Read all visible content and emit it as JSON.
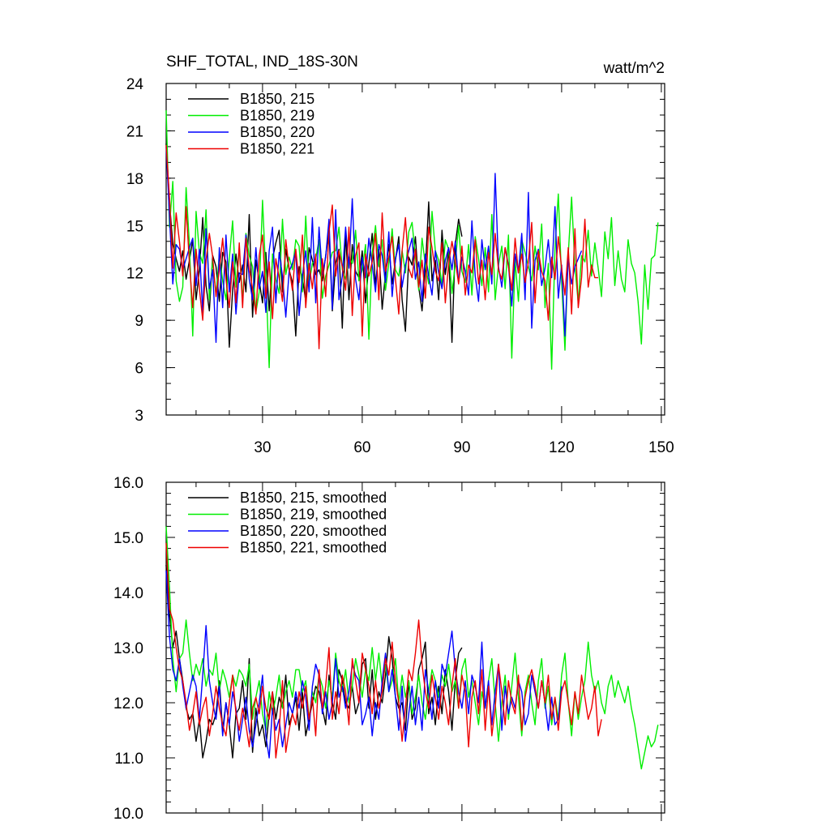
{
  "chart_data": [
    {
      "type": "line",
      "title": "SHF_TOTAL, IND_18S-30N",
      "units": "watt/m^2",
      "xlim": [
        1,
        151
      ],
      "ylim": [
        3,
        24
      ],
      "x_ticks": [
        30,
        60,
        90,
        120,
        150
      ],
      "x_minor_step": 10,
      "y_ticks": [
        3,
        6,
        9,
        12,
        15,
        18,
        21,
        24
      ],
      "y_minor_step": 1,
      "y_tick_format": "int",
      "show_x_labels": true,
      "legend_position": "top-left",
      "series": [
        {
          "name": "B1850, 215",
          "color": "#000000",
          "values": [
            20.2,
            16.5,
            13.8,
            12.9,
            12.1,
            13.4,
            11.6,
            12.8,
            14.1,
            10.3,
            12.2,
            15.5,
            11.2,
            9.6,
            13.1,
            12.4,
            10.2,
            13.3,
            12.7,
            7.3,
            10.9,
            13.2,
            11.4,
            12.5,
            10.8,
            15.7,
            9.2,
            12.8,
            11.5,
            10.1,
            13.3,
            9.6,
            12.9,
            13.9,
            14.7,
            10.8,
            13.5,
            12.2,
            11.4,
            8.0,
            12.4,
            11.7,
            10.2,
            13.6,
            12.8,
            11.9,
            12.2,
            11.5,
            13.1,
            14.7,
            9.6,
            12.6,
            13.5,
            8.5,
            14.6,
            10.3,
            13.8,
            12.1,
            11.7,
            13.4,
            10.1,
            12.6,
            14.5,
            11.2,
            13.5,
            9.7,
            12.0,
            13.8,
            11.3,
            12.8,
            14.3,
            10.3,
            8.3,
            13.0,
            12.5,
            14.3,
            11.1,
            9.6,
            12.2,
            16.5,
            11.5,
            12.8,
            10.3,
            14.7,
            11.9,
            13.4,
            7.6,
            13.8,
            15.4,
            14.3
          ]
        },
        {
          "name": "B1850, 219",
          "color": "#00ee00",
          "values": [
            22.3,
            14.9,
            17.8,
            11.5,
            10.2,
            11.1,
            17.4,
            13.8,
            8.0,
            15.9,
            13.3,
            12.6,
            16.0,
            10.3,
            12.8,
            10.6,
            13.2,
            11.5,
            10.3,
            12.9,
            15.3,
            11.1,
            13.6,
            10.2,
            14.5,
            13.1,
            12.4,
            9.5,
            10.8,
            16.6,
            11.8,
            6.0,
            13.2,
            11.6,
            10.7,
            15.4,
            11.9,
            13.0,
            12.2,
            14.1,
            13.7,
            10.8,
            15.6,
            11.3,
            12.6,
            12.9,
            14.1,
            10.4,
            11.8,
            12.5,
            13.3,
            13.4,
            14.9,
            12.2,
            11.6,
            13.0,
            12.6,
            14.7,
            11.5,
            12.2,
            13.8,
            7.8,
            13.3,
            15.0,
            12.4,
            14.1,
            10.9,
            12.6,
            14.8,
            12.2,
            11.8,
            13.4,
            12.0,
            14.6,
            15.2,
            13.0,
            10.9,
            14.2,
            12.5,
            11.3,
            15.9,
            13.4,
            12.8,
            11.2,
            14.1,
            13.5,
            10.7,
            12.6,
            15.0,
            12.1,
            11.4,
            13.8,
            10.6,
            14.3,
            12.9,
            11.2,
            13.6,
            10.8,
            15.7,
            10.3,
            12.5,
            13.7,
            11.0,
            14.4,
            6.6,
            12.8,
            10.2,
            14.1,
            13.3,
            12.4,
            11.5,
            13.7,
            12.2,
            15.1,
            9.8,
            12.6,
            5.9,
            13.5,
            17.0,
            11.5,
            7.1,
            13.2,
            16.8,
            12.4,
            10.1,
            13.1,
            12.7,
            14.7,
            11.8,
            13.9,
            12.3,
            10.5,
            14.6,
            12.9,
            15.5,
            11.2,
            13.4,
            11.6,
            10.8,
            14.1,
            12.6,
            12.0,
            10.2,
            7.5,
            12.5,
            9.7,
            12.9,
            13.1,
            15.2
          ]
        },
        {
          "name": "B1850, 220",
          "color": "#0000ff",
          "values": [
            20.0,
            15.6,
            11.3,
            13.8,
            13.5,
            12.2,
            12.9,
            13.6,
            14.2,
            11.2,
            13.5,
            9.5,
            14.8,
            11.0,
            12.2,
            7.6,
            13.6,
            9.8,
            14.4,
            10.8,
            13.2,
            9.4,
            12.0,
            11.9,
            14.4,
            11.6,
            10.3,
            13.6,
            11.0,
            12.1,
            9.5,
            13.4,
            14.9,
            10.1,
            13.3,
            11.8,
            9.2,
            12.1,
            12.6,
            13.4,
            9.3,
            11.8,
            13.4,
            10.8,
            15.5,
            10.1,
            14.9,
            11.9,
            13.0,
            15.4,
            9.7,
            16.0,
            10.3,
            11.8,
            14.9,
            12.3,
            16.7,
            11.6,
            10.3,
            13.0,
            11.7,
            14.2,
            12.5,
            10.8,
            13.8,
            13.1,
            11.4,
            14.6,
            10.5,
            12.9,
            13.8,
            11.1,
            12.5,
            13.4,
            14.2,
            11.6,
            12.7,
            10.2,
            13.2,
            11.8,
            10.6,
            13.4,
            12.0,
            11.0,
            12.8,
            13.6,
            12.2,
            14.0,
            11.4,
            13.0,
            12.1,
            10.6,
            15.3,
            11.8,
            10.2,
            14.1,
            12.2,
            13.7,
            11.3,
            18.3,
            12.4,
            11.1,
            13.6,
            12.5,
            9.9,
            13.2,
            12.0,
            14.5,
            10.3,
            17.1,
            8.5,
            12.8,
            13.5,
            11.2,
            12.3,
            14.1,
            11.7,
            16.2,
            10.4,
            12.5,
            8.0,
            13.0,
            11.3,
            12.4,
            12.9,
            13.4
          ]
        },
        {
          "name": "B1850, 221",
          "color": "#ee0000",
          "values": [
            20.1,
            16.8,
            12.3,
            15.8,
            14.0,
            11.8,
            16.2,
            12.6,
            9.8,
            13.5,
            11.0,
            9.0,
            12.8,
            14.5,
            13.0,
            10.5,
            12.2,
            14.2,
            11.6,
            9.8,
            12.7,
            10.1,
            13.9,
            9.8,
            14.2,
            12.3,
            11.0,
            9.4,
            13.1,
            14.4,
            10.4,
            12.7,
            9.1,
            12.9,
            11.7,
            10.2,
            14.1,
            12.3,
            10.9,
            13.5,
            11.4,
            14.4,
            9.8,
            12.6,
            11.0,
            13.2,
            7.2,
            12.9,
            10.5,
            14.6,
            16.3,
            11.8,
            13.4,
            12.4,
            10.9,
            14.9,
            9.3,
            13.1,
            13.9,
            8.0,
            13.2,
            11.8,
            12.7,
            14.5,
            10.3,
            15.8,
            12.1,
            13.0,
            14.3,
            11.6,
            9.4,
            13.4,
            15.5,
            12.3,
            11.7,
            13.5,
            11.1,
            12.8,
            10.4,
            14.9,
            13.6,
            12.1,
            11.5,
            13.9,
            10.1,
            12.6,
            14.0,
            12.8,
            11.3,
            13.7,
            10.6,
            12.5,
            12.0,
            14.1,
            11.3,
            12.8,
            10.3,
            13.3,
            11.9,
            14.5,
            12.2,
            11.6,
            13.6,
            12.4,
            10.9,
            14.2,
            12.0,
            13.2,
            11.4,
            12.7,
            15.2,
            10.1,
            13.4,
            12.1,
            11.5,
            9.0,
            13.0,
            11.6,
            14.3,
            12.3,
            10.6,
            13.6,
            9.4,
            14.8,
            9.8,
            11.7,
            15.4,
            11.1,
            12.5,
            11.7,
            11.7
          ]
        }
      ]
    },
    {
      "type": "line",
      "title": "",
      "units": "",
      "xlim": [
        1,
        151
      ],
      "ylim": [
        10,
        16
      ],
      "x_ticks": [
        30,
        60,
        90,
        120,
        150
      ],
      "x_minor_step": 10,
      "y_ticks": [
        10,
        11,
        12,
        13,
        14,
        15,
        16
      ],
      "y_minor_step": 0.2,
      "y_tick_format": "fixed1",
      "show_x_labels": false,
      "legend_position": "top-left",
      "series": [
        {
          "name": "B1850, 215, smoothed",
          "color": "#000000",
          "values": [
            14.5,
            13.6,
            13.0,
            13.3,
            12.8,
            12.4,
            11.9,
            11.7,
            11.8,
            11.3,
            11.7,
            11.0,
            11.3,
            11.7,
            11.6,
            11.8,
            12.4,
            11.5,
            12.0,
            11.6,
            11.0,
            11.8,
            11.9,
            12.4,
            11.7,
            12.8,
            11.1,
            11.9,
            11.4,
            11.6,
            11.2,
            11.8,
            12.2,
            11.7,
            12.1,
            11.9,
            12.5,
            11.6,
            11.8,
            12.1,
            11.5,
            12.2,
            11.4,
            11.7,
            12.0,
            12.3,
            12.2,
            11.9,
            11.6,
            12.5,
            12.0,
            11.7,
            12.6,
            12.4,
            12.0,
            11.9,
            12.3,
            11.8,
            12.0,
            12.7,
            12.8,
            11.9,
            12.6,
            11.7,
            12.2,
            12.0,
            12.5,
            13.2,
            12.8,
            12.1,
            11.9,
            12.0,
            11.5,
            12.4,
            11.7,
            11.9,
            12.6,
            12.8,
            13.1,
            11.8,
            12.1,
            11.6,
            12.3,
            11.8,
            12.6,
            12.2,
            11.5,
            12.4,
            12.9,
            13.0
          ]
        },
        {
          "name": "B1850, 219, smoothed",
          "color": "#00ee00",
          "values": [
            15.2,
            14.1,
            12.8,
            12.2,
            12.8,
            12.9,
            13.5,
            12.9,
            12.4,
            12.7,
            12.5,
            12.8,
            12.3,
            12.6,
            12.5,
            12.9,
            12.2,
            12.6,
            12.4,
            12.1,
            12.5,
            12.3,
            12.6,
            12.5,
            12.3,
            12.7,
            11.7,
            12.1,
            12.4,
            11.8,
            11.5,
            12.2,
            11.8,
            12.1,
            12.5,
            11.9,
            12.2,
            12.4,
            12.1,
            12.6,
            12.6,
            12.2,
            12.4,
            11.7,
            12.2,
            12.0,
            12.5,
            12.3,
            11.9,
            12.4,
            12.1,
            12.9,
            12.4,
            12.2,
            12.6,
            12.0,
            12.3,
            12.8,
            12.5,
            12.1,
            12.6,
            12.4,
            13.0,
            12.4,
            12.9,
            12.3,
            12.7,
            12.2,
            12.4,
            12.8,
            12.0,
            12.5,
            12.1,
            12.4,
            11.8,
            12.1,
            12.5,
            12.0,
            11.7,
            12.2,
            12.6,
            12.4,
            12.1,
            12.5,
            12.3,
            12.7,
            12.2,
            12.4,
            11.9,
            12.6,
            12.8,
            12.1,
            12.4,
            12.0,
            11.6,
            12.2,
            11.9,
            12.4,
            12.8,
            12.0,
            11.3,
            12.0,
            12.5,
            11.7,
            12.3,
            12.9,
            12.1,
            11.4,
            12.2,
            12.5,
            12.0,
            11.6,
            12.4,
            12.8,
            11.9,
            12.3,
            11.6,
            12.1,
            11.7,
            12.5,
            12.9,
            12.0,
            11.4,
            12.2,
            11.7,
            12.1,
            12.4,
            13.1,
            12.5,
            12.2,
            12.4,
            12.0,
            11.8,
            12.3,
            12.5,
            12.1,
            12.4,
            12.2,
            12.0,
            12.3,
            11.9,
            11.6,
            11.2,
            10.8,
            11.1,
            11.4,
            11.2,
            11.3,
            11.6
          ]
        },
        {
          "name": "B1850, 220, smoothed",
          "color": "#0000ff",
          "values": [
            14.4,
            13.2,
            12.6,
            12.4,
            12.8,
            12.3,
            11.9,
            12.2,
            12.5,
            12.3,
            11.7,
            12.5,
            13.4,
            12.4,
            12.0,
            11.7,
            12.3,
            11.4,
            12.0,
            11.6,
            12.2,
            11.9,
            11.3,
            11.7,
            12.1,
            11.5,
            11.2,
            11.6,
            12.0,
            12.5,
            11.4,
            11.0,
            11.9,
            11.5,
            11.7,
            11.2,
            11.6,
            12.0,
            11.8,
            12.2,
            11.9,
            12.4,
            12.1,
            11.5,
            12.3,
            12.7,
            12.5,
            11.8,
            12.2,
            11.7,
            12.0,
            12.8,
            12.1,
            12.3,
            11.9,
            12.2,
            12.7,
            12.5,
            12.4,
            11.6,
            11.8,
            12.1,
            11.4,
            12.0,
            11.7,
            12.4,
            12.9,
            12.2,
            12.6,
            12.1,
            11.5,
            12.3,
            11.3,
            11.8,
            12.3,
            11.6,
            12.1,
            11.5,
            12.6,
            12.2,
            11.7,
            12.4,
            11.9,
            12.7,
            12.5,
            12.9,
            13.3,
            12.6,
            12.2,
            11.9,
            12.4,
            11.8,
            12.5,
            12.3,
            12.0,
            13.1,
            11.9,
            12.4,
            11.6,
            12.2,
            12.7,
            11.5,
            12.3,
            11.8,
            12.1,
            11.9,
            12.4,
            12.2,
            11.6,
            11.8,
            12.5,
            12.2,
            11.9,
            12.4,
            12.0,
            11.5,
            12.1,
            11.6,
            11.7,
            12.3
          ]
        },
        {
          "name": "B1850, 221, smoothed",
          "color": "#ee0000",
          "values": [
            14.9,
            13.7,
            13.5,
            13.0,
            12.6,
            12.4,
            12.0,
            11.5,
            11.8,
            12.2,
            11.6,
            11.9,
            12.1,
            11.4,
            11.8,
            12.3,
            11.9,
            11.6,
            11.4,
            12.0,
            12.5,
            11.8,
            11.5,
            11.9,
            11.6,
            11.2,
            11.9,
            12.1,
            11.8,
            12.3,
            11.9,
            11.7,
            12.2,
            11.0,
            11.5,
            12.4,
            11.1,
            11.5,
            11.8,
            11.6,
            12.2,
            11.9,
            12.3,
            11.7,
            12.1,
            11.4,
            12.6,
            11.9,
            12.3,
            13.0,
            11.7,
            12.2,
            11.8,
            12.5,
            12.2,
            11.6,
            12.8,
            12.4,
            12.0,
            12.9,
            12.6,
            12.3,
            11.8,
            12.4,
            11.9,
            12.2,
            12.8,
            12.5,
            13.1,
            12.4,
            12.0,
            11.3,
            11.9,
            12.6,
            12.4,
            12.9,
            13.5,
            12.7,
            12.2,
            11.9,
            12.5,
            12.1,
            11.7,
            12.3,
            12.0,
            11.6,
            12.3,
            12.8,
            11.9,
            12.5,
            12.2,
            11.2,
            12.1,
            12.4,
            11.8,
            12.6,
            11.5,
            12.3,
            11.4,
            11.9,
            12.7,
            12.2,
            11.6,
            12.4,
            12.0,
            11.8,
            12.5,
            11.5,
            12.1,
            12.4,
            12.6,
            12.3,
            11.9,
            12.4,
            12.0,
            12.5,
            11.7,
            12.1,
            11.5,
            12.2,
            12.4,
            12.0,
            11.6,
            12.2,
            11.8,
            12.5,
            12.1,
            11.7,
            11.9,
            12.3,
            11.4,
            11.7
          ]
        }
      ]
    }
  ]
}
